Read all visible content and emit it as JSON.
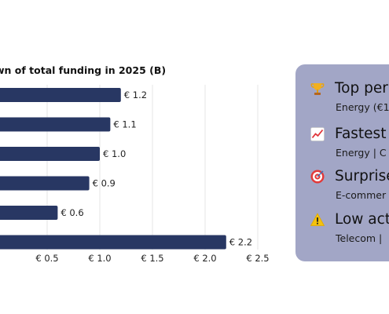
{
  "chart_data": {
    "type": "bar",
    "orientation": "horizontal",
    "title": "wn of total funding in 2025 (B)",
    "values": [
      1.2,
      1.1,
      1.0,
      0.9,
      0.6,
      2.2
    ],
    "value_labels": [
      "€ 1.2",
      "€ 1.1",
      "€ 1.0",
      "€ 0.9",
      "€ 0.6",
      "€ 2.2"
    ],
    "x_ticks": [
      0.5,
      1.0,
      1.5,
      2.0,
      2.5
    ],
    "x_tick_labels": [
      "€ 0.5",
      "€ 1.0",
      "€ 1.5",
      "€ 2.0",
      "€ 2.5"
    ],
    "xlim_visible": [
      0.05,
      2.5
    ],
    "grid": true,
    "bar_color": "#283763"
  },
  "insights": [
    {
      "icon": "trophy-icon",
      "title": "Top per",
      "subtitle": "Energy (€1"
    },
    {
      "icon": "trending-up-chart-icon",
      "title": "Fastest",
      "subtitle": "Energy | C"
    },
    {
      "icon": "target-icon",
      "title": "Surprise",
      "subtitle": "E-commer"
    },
    {
      "icon": "warning-icon",
      "title": "Low act",
      "subtitle": "Telecom |"
    }
  ],
  "colors": {
    "panel_bg": "#a2a6c6",
    "bar": "#283763",
    "grid": "#e6e6e6"
  }
}
